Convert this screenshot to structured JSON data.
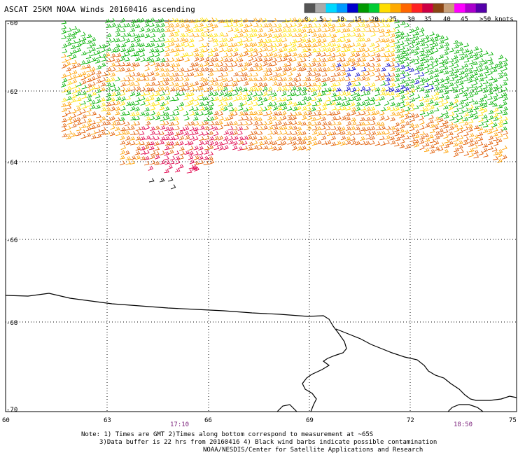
{
  "title": "ASCAT 25KM NOAA Winds 20160416 ascending",
  "legend": {
    "colors": [
      "#555555",
      "#aaaaaa",
      "#00d8ff",
      "#0099ff",
      "#0000cc",
      "#009900",
      "#00cc33",
      "#ffdd00",
      "#ffaa00",
      "#ff6600",
      "#ff2222",
      "#cc0044",
      "#8b4513",
      "#c8a07a",
      "#ff00ff",
      "#aa00cc",
      "#5500aa"
    ],
    "labels": [
      {
        "text": "0"
      },
      {
        "text": "5"
      },
      {
        "text": "10"
      },
      {
        "text": "15"
      },
      {
        "text": "20"
      },
      {
        "text": "25"
      },
      {
        "text": "30"
      },
      {
        "text": "35"
      },
      {
        "text": "40"
      },
      {
        "text": "45"
      },
      {
        "text": ">50 knots"
      }
    ]
  },
  "axes": {
    "lat_labels": [
      "-60",
      "-62",
      "-64",
      "-66",
      "-68",
      "-70"
    ],
    "lon_labels": [
      "60",
      "63",
      "66",
      "69",
      "72",
      "75"
    ]
  },
  "times": [
    "17:10",
    "18:50"
  ],
  "notes": [
    "Note: 1) Times are GMT 2)Times along bottom correspond to measurement at ~65S",
    "3)Data buffer is 22 hrs from 20160416 4) Black wind barbs indicate possible contamination",
    "NOAA/NESDIS/Center for Satellite Applications and Research"
  ],
  "barb_colors": {
    "green": "#00b000",
    "yellow": "#ffe000",
    "orange": "#ffa000",
    "redorange": "#e05a00",
    "red": "#e0004a",
    "blue": "#0000cc",
    "black": "#000000"
  }
}
